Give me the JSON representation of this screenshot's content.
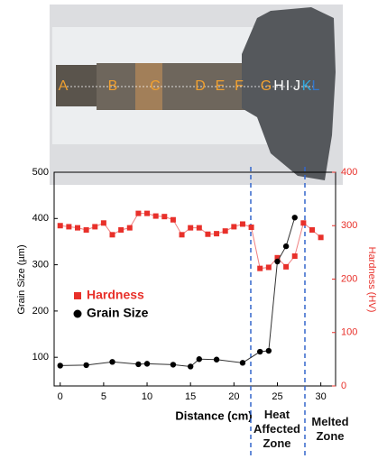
{
  "photo": {
    "labels": [
      "A",
      "B",
      "C",
      "D",
      "E",
      "F",
      "G",
      "H",
      "I",
      "J",
      "K",
      "L"
    ]
  },
  "chart_data": {
    "type": "line",
    "xlabel": "Distance (cm)",
    "ylabel": "Grain Size (µm)",
    "y2label": "Hardness (HV)",
    "xlim": [
      -0.7,
      31.7
    ],
    "xticks": [
      0,
      5,
      10,
      15,
      20,
      25,
      30
    ],
    "ylim": [
      38,
      500
    ],
    "yticks": [
      100,
      200,
      300,
      400,
      500
    ],
    "y2lim": [
      0,
      400
    ],
    "y2ticks": [
      0,
      100,
      200,
      300,
      400
    ],
    "legend": "left",
    "annotations": [
      "Heat Affected Zone",
      "Melted Zone"
    ],
    "series": [
      {
        "name": "Hardness",
        "color": "#e8302a",
        "marker": "square",
        "axis": "y2",
        "x": [
          0,
          1,
          2,
          3,
          4,
          5,
          6,
          7,
          8,
          9,
          10,
          11,
          12,
          13,
          14,
          15,
          16,
          17,
          18,
          19,
          20,
          21,
          22,
          23,
          24,
          25,
          26,
          27,
          28,
          29,
          30
        ],
        "values": [
          300,
          298,
          296,
          292,
          298,
          305,
          283,
          292,
          296,
          323,
          323,
          318,
          317,
          311,
          283,
          296,
          296,
          284,
          285,
          290,
          298,
          303,
          297,
          220,
          222,
          240,
          223,
          243,
          305,
          292,
          278
        ]
      },
      {
        "name": "Grain Size",
        "color": "#000000",
        "marker": "circle",
        "x": [
          0,
          3,
          6,
          9,
          10,
          13,
          15,
          16,
          18,
          21,
          23,
          24,
          25,
          26,
          27
        ],
        "values": [
          82,
          83,
          90,
          85,
          86,
          84,
          80,
          96,
          95,
          88,
          112,
          114,
          307,
          340,
          402
        ]
      }
    ]
  }
}
